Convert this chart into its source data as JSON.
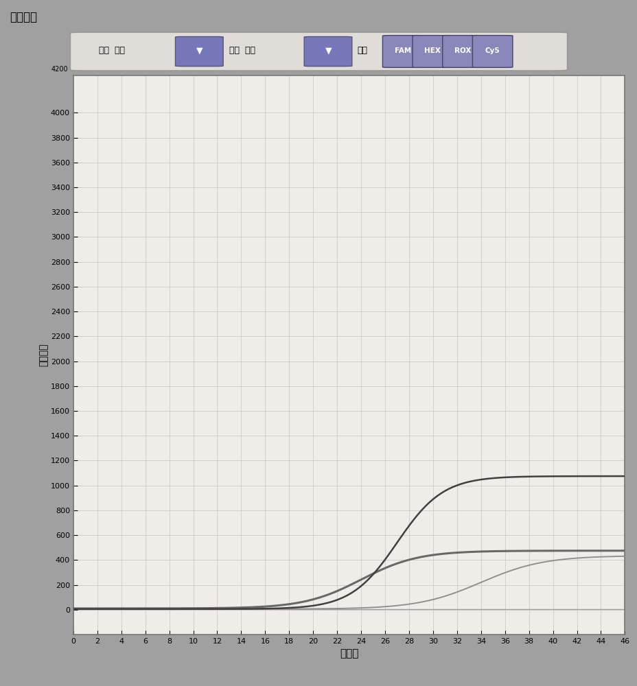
{
  "title": "扩增曲线",
  "xlabel": "循环数",
  "ylabel": "荧光强度",
  "xmin": 0,
  "xmax": 46,
  "ymin": -200,
  "ymax": 4300,
  "xticks": [
    0,
    2,
    4,
    6,
    8,
    10,
    12,
    14,
    16,
    18,
    20,
    22,
    24,
    26,
    28,
    30,
    32,
    34,
    36,
    38,
    40,
    42,
    44,
    46
  ],
  "yticks": [
    0,
    200,
    400,
    600,
    800,
    1000,
    1200,
    1400,
    1600,
    1800,
    2000,
    2200,
    2400,
    2600,
    2800,
    3000,
    3200,
    3400,
    3600,
    3800,
    4000
  ],
  "outer_bg": "#a0a0a0",
  "title_bar_bg": "#787878",
  "toolbar_bg": "#c8c8c8",
  "toolbar_box_bg": "#e8e8e8",
  "plot_bg": "#f0ede8",
  "grid_color": "#d0c8c8",
  "curve1_color": "#404040",
  "curve2_color": "#686868",
  "curve3_color": "#909090",
  "flat_color": "#a0a0a0",
  "btn_color": "#8888bb",
  "btn_labels": [
    "FAM",
    "HEX",
    "ROX",
    "Cy5"
  ],
  "toolbar_text1": "颜色  孔位",
  "toolbar_text2": "线型  线性",
  "toolbar_text3": "显示"
}
